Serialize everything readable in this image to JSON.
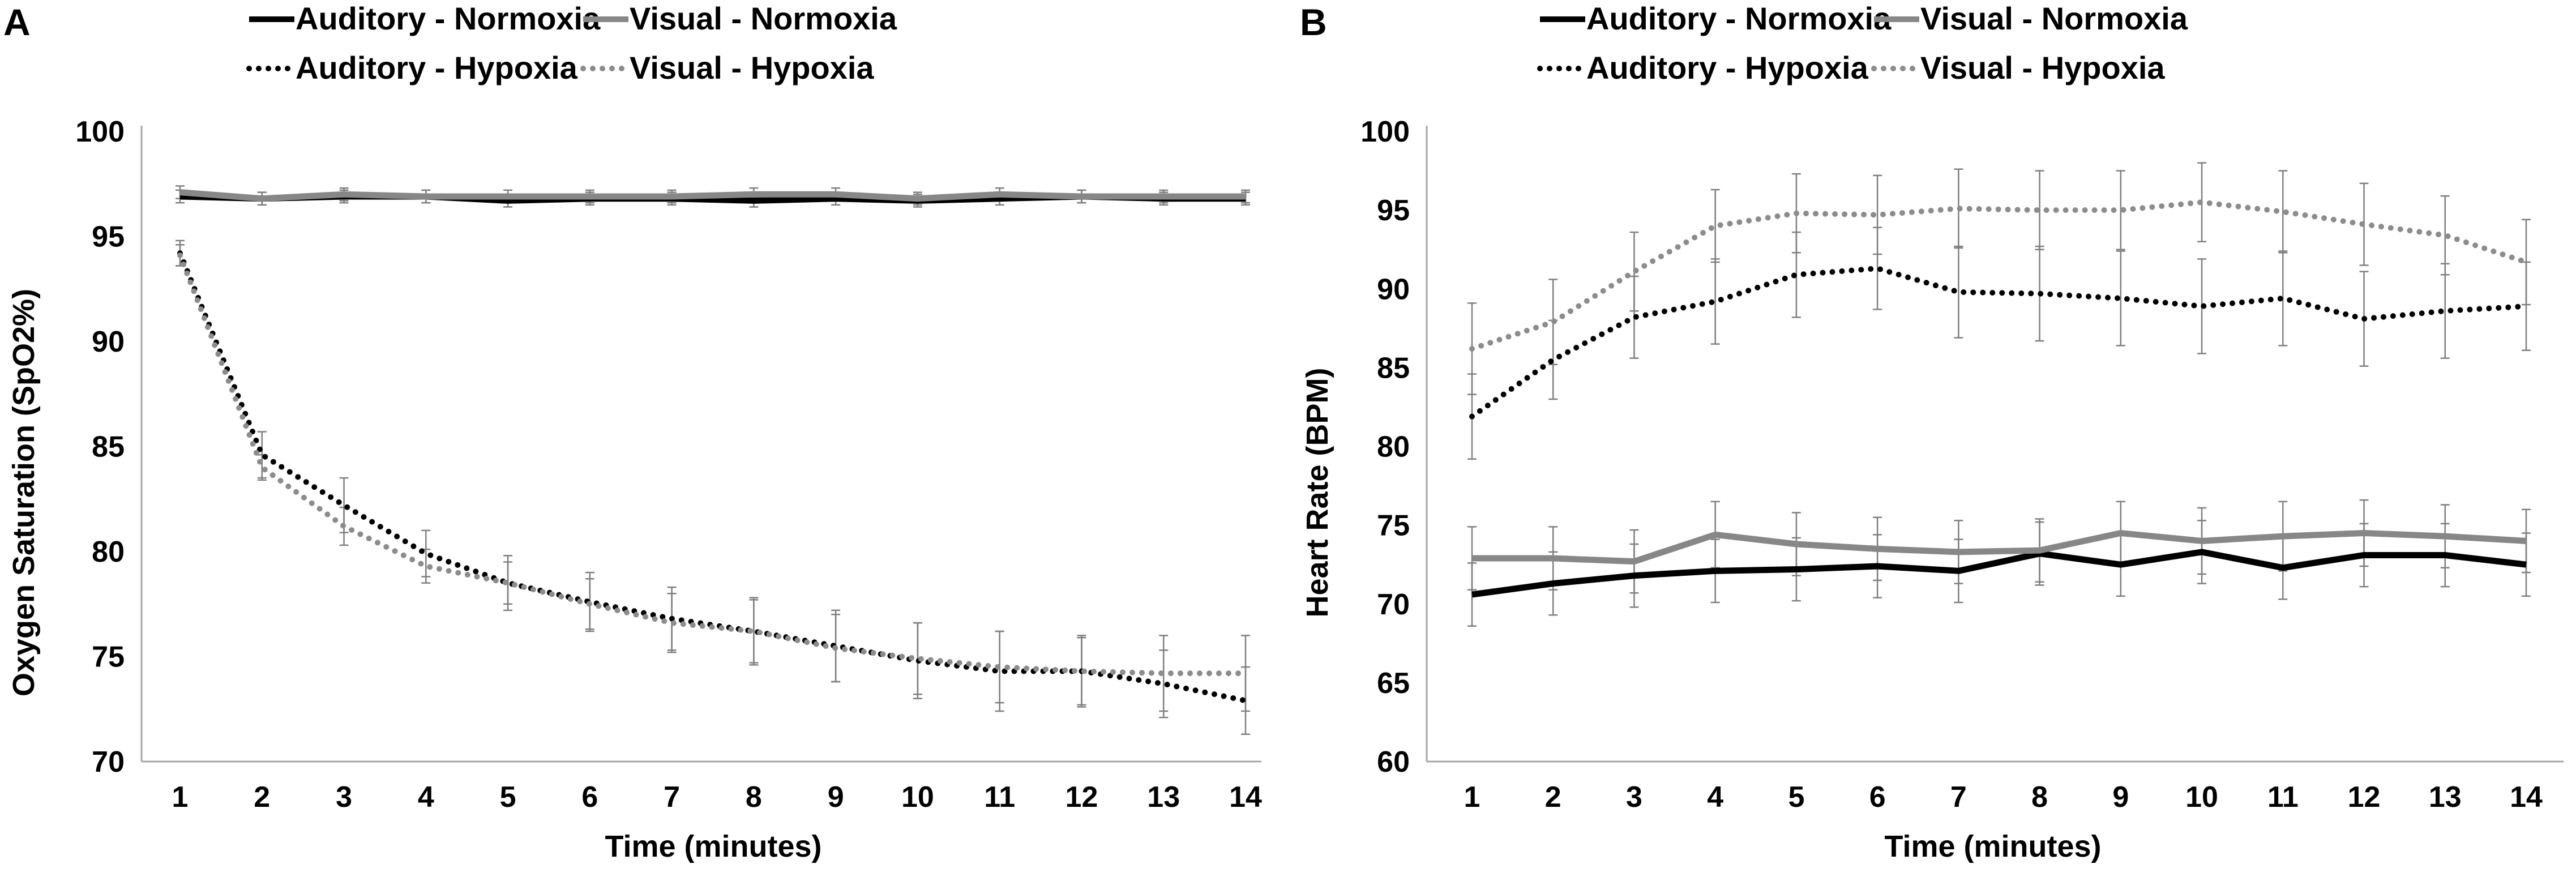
{
  "panels": [
    {
      "letter": "A",
      "chart_data": {
        "type": "line",
        "title": "",
        "xlabel": "Time (minutes)",
        "ylabel": "Oxygen Saturation (SpO2%)",
        "categories": [
          "1",
          "2",
          "3",
          "4",
          "5",
          "6",
          "7",
          "8",
          "9",
          "10",
          "11",
          "12",
          "13",
          "14"
        ],
        "ylim": [
          70,
          100
        ],
        "yticks": [
          70,
          75,
          80,
          85,
          90,
          95,
          100
        ],
        "grid": false,
        "legend_position": "top",
        "series": [
          {
            "name": "Auditory - Normoxia",
            "color": "#000000",
            "dash": "solid",
            "values": [
              96.9,
              96.8,
              96.9,
              96.9,
              96.7,
              96.8,
              96.8,
              96.7,
              96.8,
              96.7,
              96.8,
              96.9,
              96.8,
              96.8
            ],
            "errors": [
              0.3,
              0.3,
              0.3,
              0.3,
              0.3,
              0.3,
              0.3,
              0.3,
              0.3,
              0.3,
              0.3,
              0.3,
              0.3,
              0.3
            ]
          },
          {
            "name": "Visual - Normoxia",
            "color": "#878787",
            "dash": "solid",
            "values": [
              97.1,
              96.8,
              97.0,
              96.9,
              96.9,
              96.9,
              96.9,
              97.0,
              97.0,
              96.8,
              97.0,
              96.9,
              96.9,
              96.9
            ],
            "errors": [
              0.3,
              0.3,
              0.3,
              0.3,
              0.3,
              0.3,
              0.3,
              0.3,
              0.3,
              0.3,
              0.3,
              0.3,
              0.3,
              0.3
            ]
          },
          {
            "name": "Auditory - Hypoxia",
            "color": "#000000",
            "dash": "dotted",
            "values": [
              94.2,
              84.6,
              82.2,
              79.9,
              78.5,
              77.6,
              76.8,
              76.2,
              75.5,
              74.8,
              74.3,
              74.3,
              73.7,
              72.9
            ],
            "errors": [
              0.6,
              1.1,
              1.3,
              1.1,
              1.3,
              1.4,
              1.5,
              1.6,
              1.7,
              1.8,
              1.9,
              1.7,
              1.6,
              1.6
            ]
          },
          {
            "name": "Visual - Hypoxia",
            "color": "#8c8c8c",
            "dash": "dotted",
            "values": [
              94.1,
              84.0,
              81.2,
              79.3,
              78.5,
              77.5,
              76.6,
              76.2,
              75.4,
              74.9,
              74.5,
              74.3,
              74.2,
              74.2
            ],
            "errors": [
              0.5,
              0.6,
              0.9,
              0.8,
              1.0,
              1.2,
              1.4,
              1.5,
              1.6,
              1.7,
              1.7,
              1.6,
              1.8,
              1.8
            ]
          }
        ]
      }
    },
    {
      "letter": "B",
      "chart_data": {
        "type": "line",
        "title": "",
        "xlabel": "Time (minutes)",
        "ylabel": "Heart Rate (BPM)",
        "categories": [
          "1",
          "2",
          "3",
          "4",
          "5",
          "6",
          "7",
          "8",
          "9",
          "10",
          "11",
          "12",
          "13",
          "14"
        ],
        "ylim": [
          60,
          100
        ],
        "yticks": [
          60,
          65,
          70,
          75,
          80,
          85,
          90,
          95,
          100
        ],
        "grid": false,
        "legend_position": "top",
        "series": [
          {
            "name": "Auditory - Normoxia",
            "color": "#000000",
            "dash": "solid",
            "values": [
              70.6,
              71.3,
              71.8,
              72.1,
              72.2,
              72.4,
              72.1,
              73.2,
              72.5,
              73.3,
              72.3,
              73.1,
              73.1,
              72.5
            ],
            "errors": [
              2.0,
              2.0,
              2.0,
              2.0,
              2.0,
              2.0,
              2.0,
              2.0,
              2.0,
              2.0,
              2.0,
              2.0,
              2.0,
              2.0
            ]
          },
          {
            "name": "Visual - Normoxia",
            "color": "#878787",
            "dash": "solid",
            "values": [
              72.9,
              72.9,
              72.7,
              74.4,
              73.8,
              73.5,
              73.3,
              73.4,
              74.5,
              74.0,
              74.3,
              74.5,
              74.3,
              74.0
            ],
            "errors": [
              2.0,
              2.0,
              2.0,
              2.1,
              2.0,
              2.0,
              2.0,
              2.0,
              2.0,
              2.1,
              2.2,
              2.1,
              2.0,
              2.0
            ]
          },
          {
            "name": "Auditory - Hypoxia",
            "color": "#000000",
            "dash": "dotted",
            "values": [
              81.9,
              85.5,
              88.2,
              89.2,
              90.9,
              91.3,
              89.8,
              89.7,
              89.4,
              88.9,
              89.4,
              88.1,
              88.6,
              88.9
            ],
            "errors": [
              2.7,
              2.5,
              2.6,
              2.7,
              2.7,
              2.6,
              2.9,
              3.0,
              3.0,
              3.0,
              3.0,
              3.0,
              3.0,
              2.8
            ]
          },
          {
            "name": "Visual - Hypoxia",
            "color": "#8c8c8c",
            "dash": "dotted",
            "values": [
              86.2,
              87.9,
              91.1,
              94.0,
              94.8,
              94.7,
              95.1,
              95.0,
              95.0,
              95.5,
              94.9,
              94.1,
              93.4,
              91.7
            ],
            "errors": [
              2.9,
              2.7,
              2.5,
              2.3,
              2.5,
              2.5,
              2.5,
              2.5,
              2.5,
              2.5,
              2.6,
              2.6,
              2.5,
              2.7
            ]
          }
        ]
      }
    }
  ]
}
